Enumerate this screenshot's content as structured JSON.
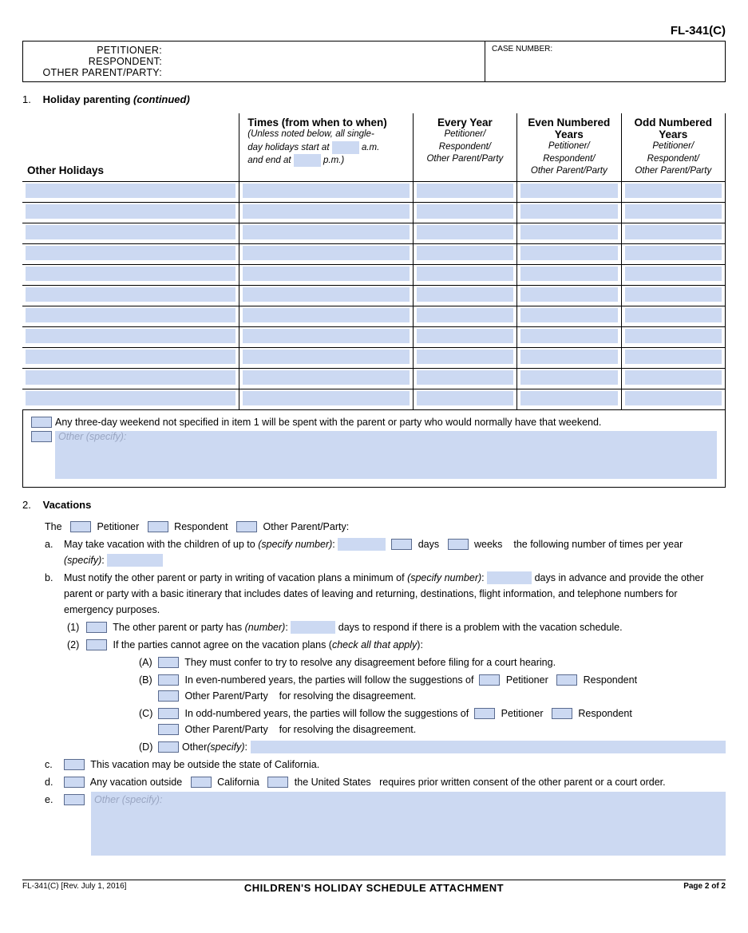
{
  "form_id": "FL-341(C)",
  "header": {
    "petitioner_label": "PETITIONER:",
    "respondent_label": "RESPONDENT:",
    "other_label": "OTHER PARENT/PARTY:",
    "case_label": "CASE NUMBER:"
  },
  "section1": {
    "num": "1.",
    "title_bold": "Holiday parenting",
    "title_italic": "(continued)",
    "col_holidays": "Other Holidays",
    "col_times_h": "Times (from when to when)",
    "col_times_sub_a": "(Unless noted below, all single-",
    "col_times_sub_b": "day holidays start at",
    "col_times_sub_c": "a.m.",
    "col_times_sub_d": "and end at",
    "col_times_sub_e": "p.m.)",
    "col_every_h": "Every Year",
    "col_sub": "Petitioner/\nRespondent/\nOther Parent/Party",
    "col_even_h": "Even Numbered Years",
    "col_odd_h": "Odd Numbered Years",
    "row_count": 11,
    "note1": "Any three-day weekend not specified in item 1 will be spent with the parent or party who would normally have that weekend.",
    "note_other": "Other (specify):"
  },
  "section2": {
    "num": "2.",
    "title": "Vacations",
    "the": "The",
    "petitioner": "Petitioner",
    "respondent": "Respondent",
    "opp": "Other Parent/Party:",
    "a_mk": "a.",
    "a_1": "May take vacation with the children of up to ",
    "a_spec": "(specify number)",
    "a_days": "days",
    "a_weeks": "weeks",
    "a_tail": "the following number of times per year ",
    "a_spec2": "(specify)",
    "b_mk": "b.",
    "b_1": "Must notify the other parent or party in writing of vacation plans a minimum of ",
    "b_spec": "(specify number)",
    "b_2": " days in advance and provide the other parent or party with a basic itinerary that includes dates of leaving and returning, destinations, flight information, and telephone numbers for emergency purposes.",
    "b1_mk": "(1)",
    "b1_a": "The other parent or party has ",
    "b1_num": "(number)",
    "b1_b": " days to respond if there is a problem with the vacation schedule.",
    "b2_mk": "(2)",
    "b2_a": "If the parties cannot agree on the vacation plans (",
    "b2_chk": "check all that apply",
    "b2_b": "):",
    "A_mk": "(A)",
    "A": "They must confer to try to resolve any disagreement before filing for a court hearing.",
    "B_mk": "(B)",
    "B_a": "In even-numbered years, the parties will follow the suggestions of",
    "B_pet": "Petitioner",
    "B_resp": "Respondent",
    "B_opp": "Other Parent/Party",
    "B_tail": "for resolving the disagreement.",
    "C_mk": "(C)",
    "C_a": "In odd-numbered years, the parties will follow the suggestions of",
    "D_mk": "(D)",
    "D": "Other ",
    "D_spec": "(specify)",
    "c_mk": "c.",
    "c": "This vacation may be outside the state of California.",
    "d_mk": "d.",
    "d_a": "Any vacation outside",
    "d_cal": "California",
    "d_us": "the United States",
    "d_b": "requires prior written consent of the other parent or a court order.",
    "e_mk": "e.",
    "e": "Other (specify):"
  },
  "footer": {
    "left": "FL-341(C) [Rev. July 1, 2016]",
    "center": "CHILDREN'S HOLIDAY SCHEDULE ATTACHMENT",
    "right": "Page 2 of 2"
  },
  "colors": {
    "field": "#ccd9f2",
    "border": "#000000"
  }
}
